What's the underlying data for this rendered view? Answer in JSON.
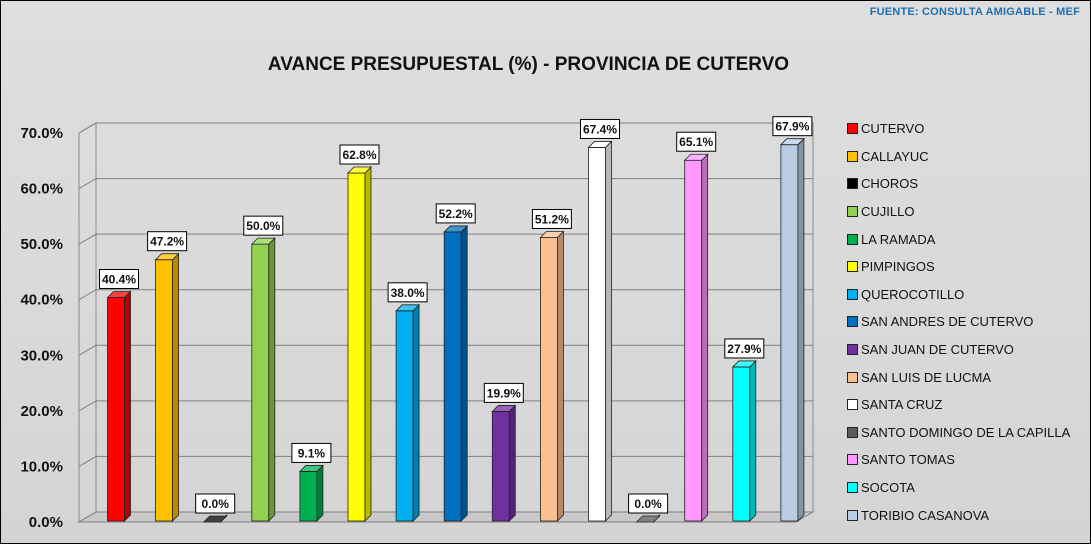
{
  "source": "FUENTE:  CONSULTA AMIGABLE  -  MEF",
  "chart_data": {
    "type": "bar",
    "title": "AVANCE PRESUPUESTAL (%) - PROVINCIA DE CUTERVO",
    "xlabel": "",
    "ylabel": "",
    "ylim": [
      0,
      70
    ],
    "y_ticks": [
      "0.0%",
      "10.0%",
      "20.0%",
      "30.0%",
      "40.0%",
      "50.0%",
      "60.0%",
      "70.0%"
    ],
    "grid": true,
    "legend_position": "right",
    "value_format": "percent_1dp",
    "categories": [
      "CUTERVO",
      "CALLAYUC",
      "CHOROS",
      "CUJILLO",
      "LA RAMADA",
      "PIMPINGOS",
      "QUEROCOTILLO",
      "SAN ANDRES DE CUTERVO",
      "SAN JUAN DE CUTERVO",
      "SAN LUIS DE LUCMA",
      "SANTA CRUZ",
      "SANTO DOMINGO DE LA CAPILLA",
      "SANTO TOMAS",
      "SOCOTA",
      "TORIBIO CASANOVA"
    ],
    "values": [
      40.4,
      47.2,
      0.0,
      50.0,
      9.1,
      62.8,
      38.0,
      52.2,
      19.9,
      51.2,
      67.4,
      0.0,
      65.1,
      27.9,
      67.9
    ],
    "data_labels": [
      "40.4%",
      "47.2%",
      "0.0%",
      "50.0%",
      "9.1%",
      "62.8%",
      "38.0%",
      "52.2%",
      "19.9%",
      "51.2%",
      "67.4%",
      "0.0%",
      "65.1%",
      "27.9%",
      "67.9%"
    ],
    "colors": [
      "#ff0000",
      "#ffc000",
      "#000000",
      "#92d050",
      "#00b050",
      "#ffff00",
      "#00b0f0",
      "#0070c0",
      "#7030a0",
      "#fac090",
      "#ffffff",
      "#595959",
      "#ff99ff",
      "#00ffff",
      "#b8cce4"
    ]
  }
}
